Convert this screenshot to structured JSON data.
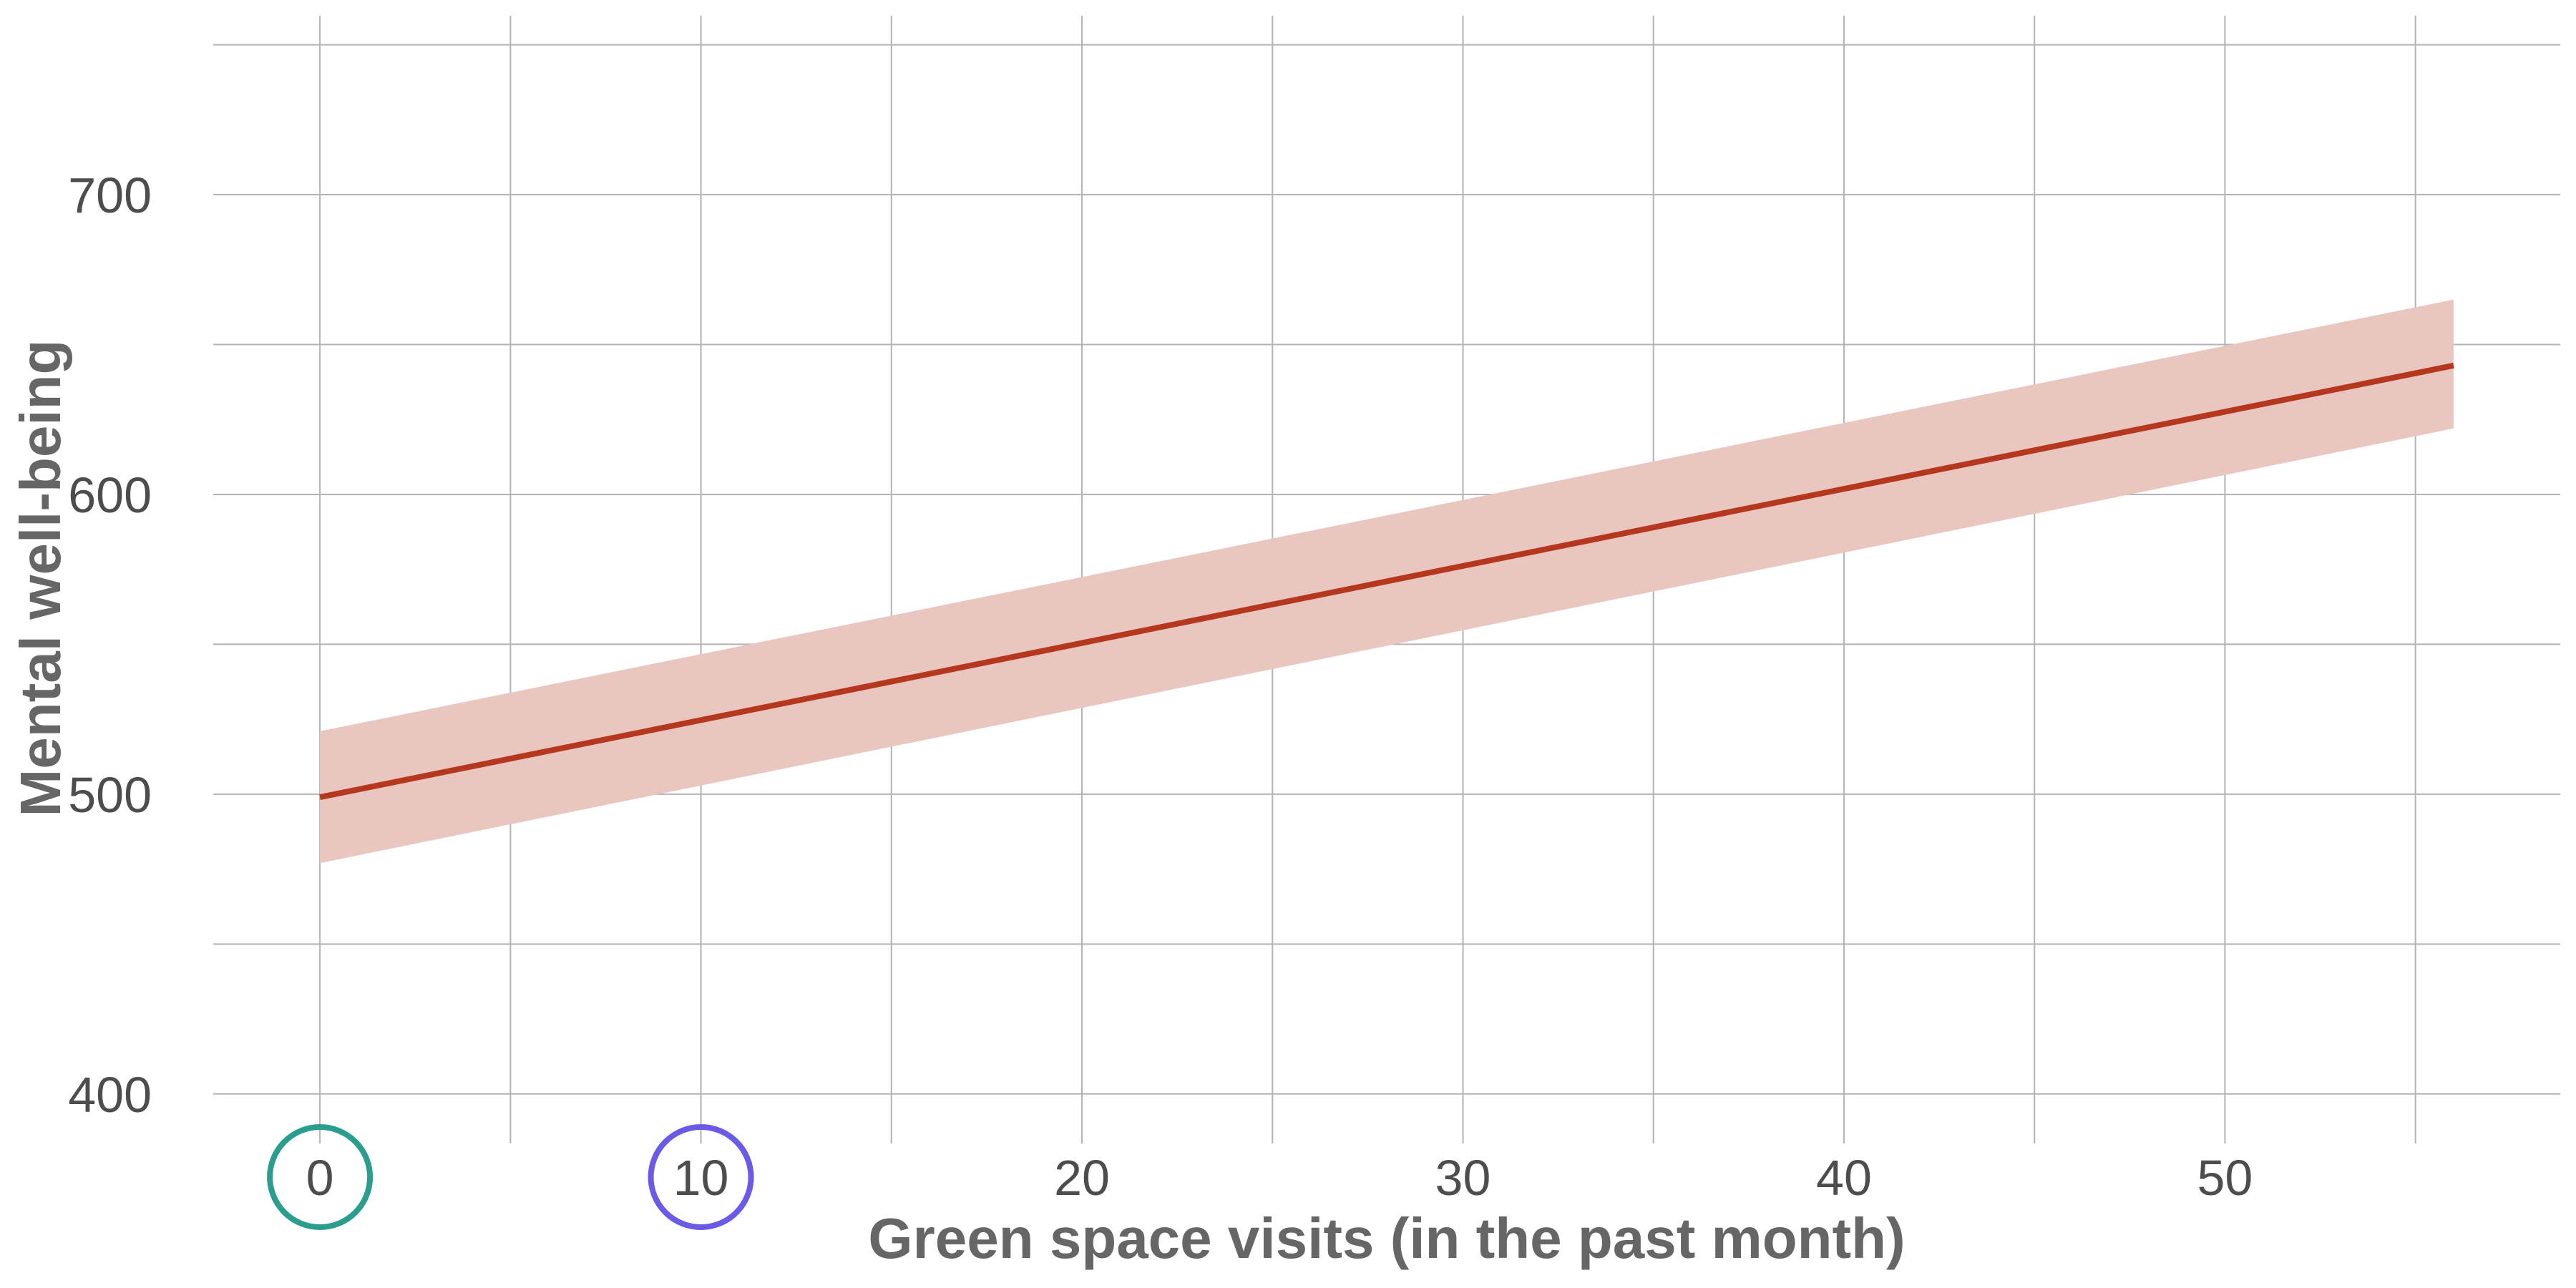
{
  "chart_data": {
    "type": "line",
    "title": "",
    "xlabel": "Green space visits (in the past month)",
    "ylabel": "Mental well-being",
    "xlim": [
      -2.8,
      58.8
    ],
    "ylim": [
      383,
      753
    ],
    "x_ticks": [
      0,
      10,
      20,
      30,
      40,
      50
    ],
    "x_tick_labels": [
      "0",
      "10",
      "20",
      "30",
      "40",
      "50"
    ],
    "y_ticks": [
      400,
      500,
      600,
      700
    ],
    "y_tick_labels": [
      "400",
      "500",
      "600",
      "700"
    ],
    "x_gridlines": [
      0,
      5,
      10,
      15,
      20,
      25,
      30,
      35,
      40,
      45,
      50,
      55
    ],
    "y_gridlines": [
      400,
      450,
      500,
      550,
      600,
      650,
      700,
      750
    ],
    "grid": true,
    "legend": "none",
    "highlighted_x_ticks": [
      {
        "value": 0,
        "color": "#2a9d8f"
      },
      {
        "value": 10,
        "color": "#6a5ae8"
      }
    ],
    "series": [
      {
        "x": [
          0,
          56
        ],
        "y": [
          499,
          643
        ],
        "ci_lower": [
          477,
          622
        ],
        "ci_upper": [
          521,
          665
        ],
        "line_color": "#b5371d",
        "band_color": "#e9c6c0"
      }
    ]
  }
}
